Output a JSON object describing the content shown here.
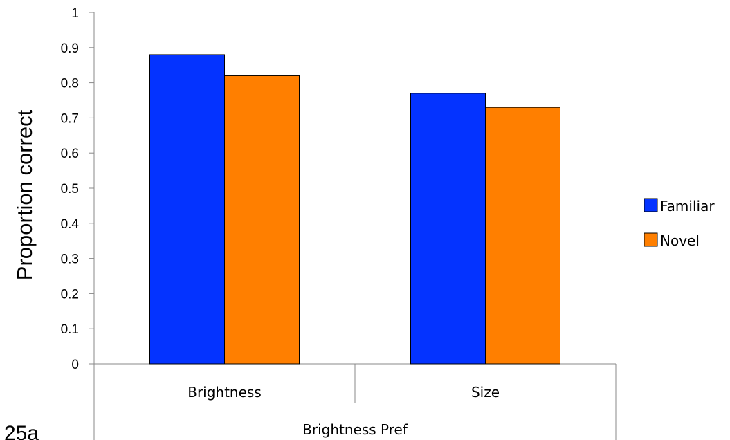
{
  "figure_tag": "25a",
  "chart_data": {
    "type": "bar",
    "categories": [
      "Brightness",
      "Size"
    ],
    "group_label": "Brightness Pref",
    "series": [
      {
        "name": "Familiar",
        "values": [
          0.88,
          0.77
        ],
        "color": "#0433ff"
      },
      {
        "name": "Novel",
        "values": [
          0.82,
          0.73
        ],
        "color": "#ff7f00"
      }
    ],
    "ylabel": "Proportion correct",
    "ylim": [
      0,
      1
    ],
    "yticks": [
      "0",
      "0.1",
      "0.2",
      "0.3",
      "0.4",
      "0.5",
      "0.6",
      "0.7",
      "0.8",
      "0.9",
      "1"
    ],
    "grid": false,
    "legend": "right"
  }
}
